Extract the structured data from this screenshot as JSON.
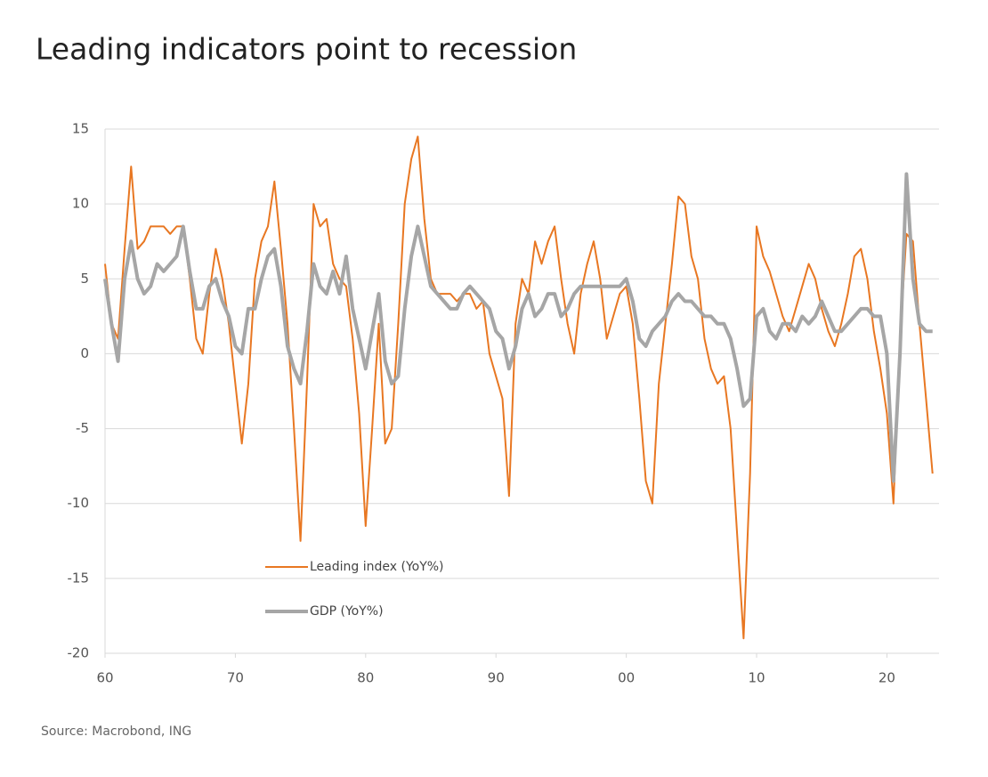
{
  "chart_data": {
    "type": "line",
    "title": "Leading indicators point to recession",
    "source": "Source: Macrobond, ING",
    "x": [
      1960,
      1960.5,
      1961,
      1961.5,
      1962,
      1962.5,
      1963,
      1963.5,
      1964,
      1964.5,
      1965,
      1965.5,
      1966,
      1966.5,
      1967,
      1967.5,
      1968,
      1968.5,
      1969,
      1969.5,
      1970,
      1970.5,
      1971,
      1971.5,
      1972,
      1972.5,
      1973,
      1973.5,
      1974,
      1974.5,
      1975,
      1975.5,
      1976,
      1976.5,
      1977,
      1977.5,
      1978,
      1978.5,
      1979,
      1979.5,
      1980,
      1980.5,
      1981,
      1981.5,
      1982,
      1982.5,
      1983,
      1983.5,
      1984,
      1984.5,
      1985,
      1985.5,
      1986,
      1986.5,
      1987,
      1987.5,
      1988,
      1988.5,
      1989,
      1989.5,
      1990,
      1990.5,
      1991,
      1991.5,
      1992,
      1992.5,
      1993,
      1993.5,
      1994,
      1994.5,
      1995,
      1995.5,
      1996,
      1996.5,
      1997,
      1997.5,
      1998,
      1998.5,
      1999,
      1999.5,
      2000,
      2000.5,
      2001,
      2001.5,
      2002,
      2002.5,
      2003,
      2003.5,
      2004,
      2004.5,
      2005,
      2005.5,
      2006,
      2006.5,
      2007,
      2007.5,
      2008,
      2008.5,
      2009,
      2009.5,
      2010,
      2010.5,
      2011,
      2011.5,
      2012,
      2012.5,
      2013,
      2013.5,
      2014,
      2014.5,
      2015,
      2015.5,
      2016,
      2016.5,
      2017,
      2017.5,
      2018,
      2018.5,
      2019,
      2019.5,
      2020,
      2020.5,
      2021,
      2021.5,
      2022,
      2022.5,
      2023,
      2023.5
    ],
    "series": [
      {
        "name": "Leading index (YoY%)",
        "color": "#e87722",
        "width": 2,
        "values": [
          6,
          2,
          1,
          7,
          12.5,
          7,
          7.5,
          8.5,
          8.5,
          8.5,
          8,
          8.5,
          8.5,
          5,
          1,
          0,
          4,
          7,
          5,
          2,
          -2,
          -6,
          -2,
          5,
          7.5,
          8.5,
          11.5,
          7,
          2,
          -5,
          -12.5,
          -2,
          10,
          8.5,
          9,
          6,
          5,
          4.5,
          1,
          -4,
          -11.5,
          -5,
          2,
          -6,
          -5,
          2,
          10,
          13,
          14.5,
          9,
          5,
          4,
          4,
          4,
          3.5,
          4,
          4,
          3,
          3.5,
          0,
          -1.5,
          -3,
          -9.5,
          2,
          5,
          4,
          7.5,
          6,
          7.5,
          8.5,
          5,
          2,
          0,
          4,
          6,
          7.5,
          5,
          1,
          2.5,
          4,
          4.5,
          2,
          -3,
          -8.5,
          -10,
          -2,
          2,
          6,
          10.5,
          10,
          6.5,
          5,
          1,
          -1,
          -2,
          -1.5,
          -5,
          -12,
          -19,
          -8,
          8.5,
          6.5,
          5.5,
          4,
          2.5,
          1.5,
          3,
          4.5,
          6,
          5,
          3,
          1.5,
          0.5,
          2,
          4,
          6.5,
          7,
          5,
          1.5,
          -1,
          -4,
          -10,
          1,
          8,
          7.5,
          2,
          -3,
          -8
        ]
      },
      {
        "name": "GDP (YoY%)",
        "color": "#a6a6a6",
        "width": 4,
        "values": [
          5,
          2,
          -0.5,
          5,
          7.5,
          5,
          4,
          4.5,
          6,
          5.5,
          6,
          6.5,
          8.5,
          5.5,
          3,
          3,
          4.5,
          5,
          3.5,
          2.5,
          0.5,
          0,
          3,
          3,
          5,
          6.5,
          7,
          4.5,
          0.5,
          -1,
          -2,
          1.5,
          6,
          4.5,
          4,
          5.5,
          4,
          6.5,
          3,
          1,
          -1,
          1.5,
          4,
          -0.5,
          -2,
          -1.5,
          3,
          6.5,
          8.5,
          6.5,
          4.5,
          4,
          3.5,
          3,
          3,
          4,
          4.5,
          4,
          3.5,
          3,
          1.5,
          1,
          -1,
          0.5,
          3,
          4,
          2.5,
          3,
          4,
          4,
          2.5,
          3,
          4,
          4.5,
          4.5,
          4.5,
          4.5,
          4.5,
          4.5,
          4.5,
          5,
          3.5,
          1,
          0.5,
          1.5,
          2,
          2.5,
          3.5,
          4,
          3.5,
          3.5,
          3,
          2.5,
          2.5,
          2,
          2,
          1,
          -1,
          -3.5,
          -3,
          2.5,
          3,
          1.5,
          1,
          2,
          2,
          1.5,
          2.5,
          2,
          2.5,
          3.5,
          2.5,
          1.5,
          1.5,
          2,
          2.5,
          3,
          3,
          2.5,
          2.5,
          0,
          -8.5,
          0,
          12,
          5,
          2,
          1.5,
          1.5
        ]
      }
    ],
    "xlim": [
      1960,
      2024
    ],
    "xticks": [
      {
        "value": 1960,
        "label": "60"
      },
      {
        "value": 1970,
        "label": "70"
      },
      {
        "value": 1980,
        "label": "80"
      },
      {
        "value": 1990,
        "label": "90"
      },
      {
        "value": 2000,
        "label": "00"
      },
      {
        "value": 2010,
        "label": "10"
      },
      {
        "value": 2020,
        "label": "20"
      }
    ],
    "ylim": [
      -20,
      15
    ],
    "yticks": [
      -20,
      -15,
      -10,
      -5,
      0,
      5,
      10,
      15
    ],
    "grid": true,
    "legend": "lower left"
  }
}
